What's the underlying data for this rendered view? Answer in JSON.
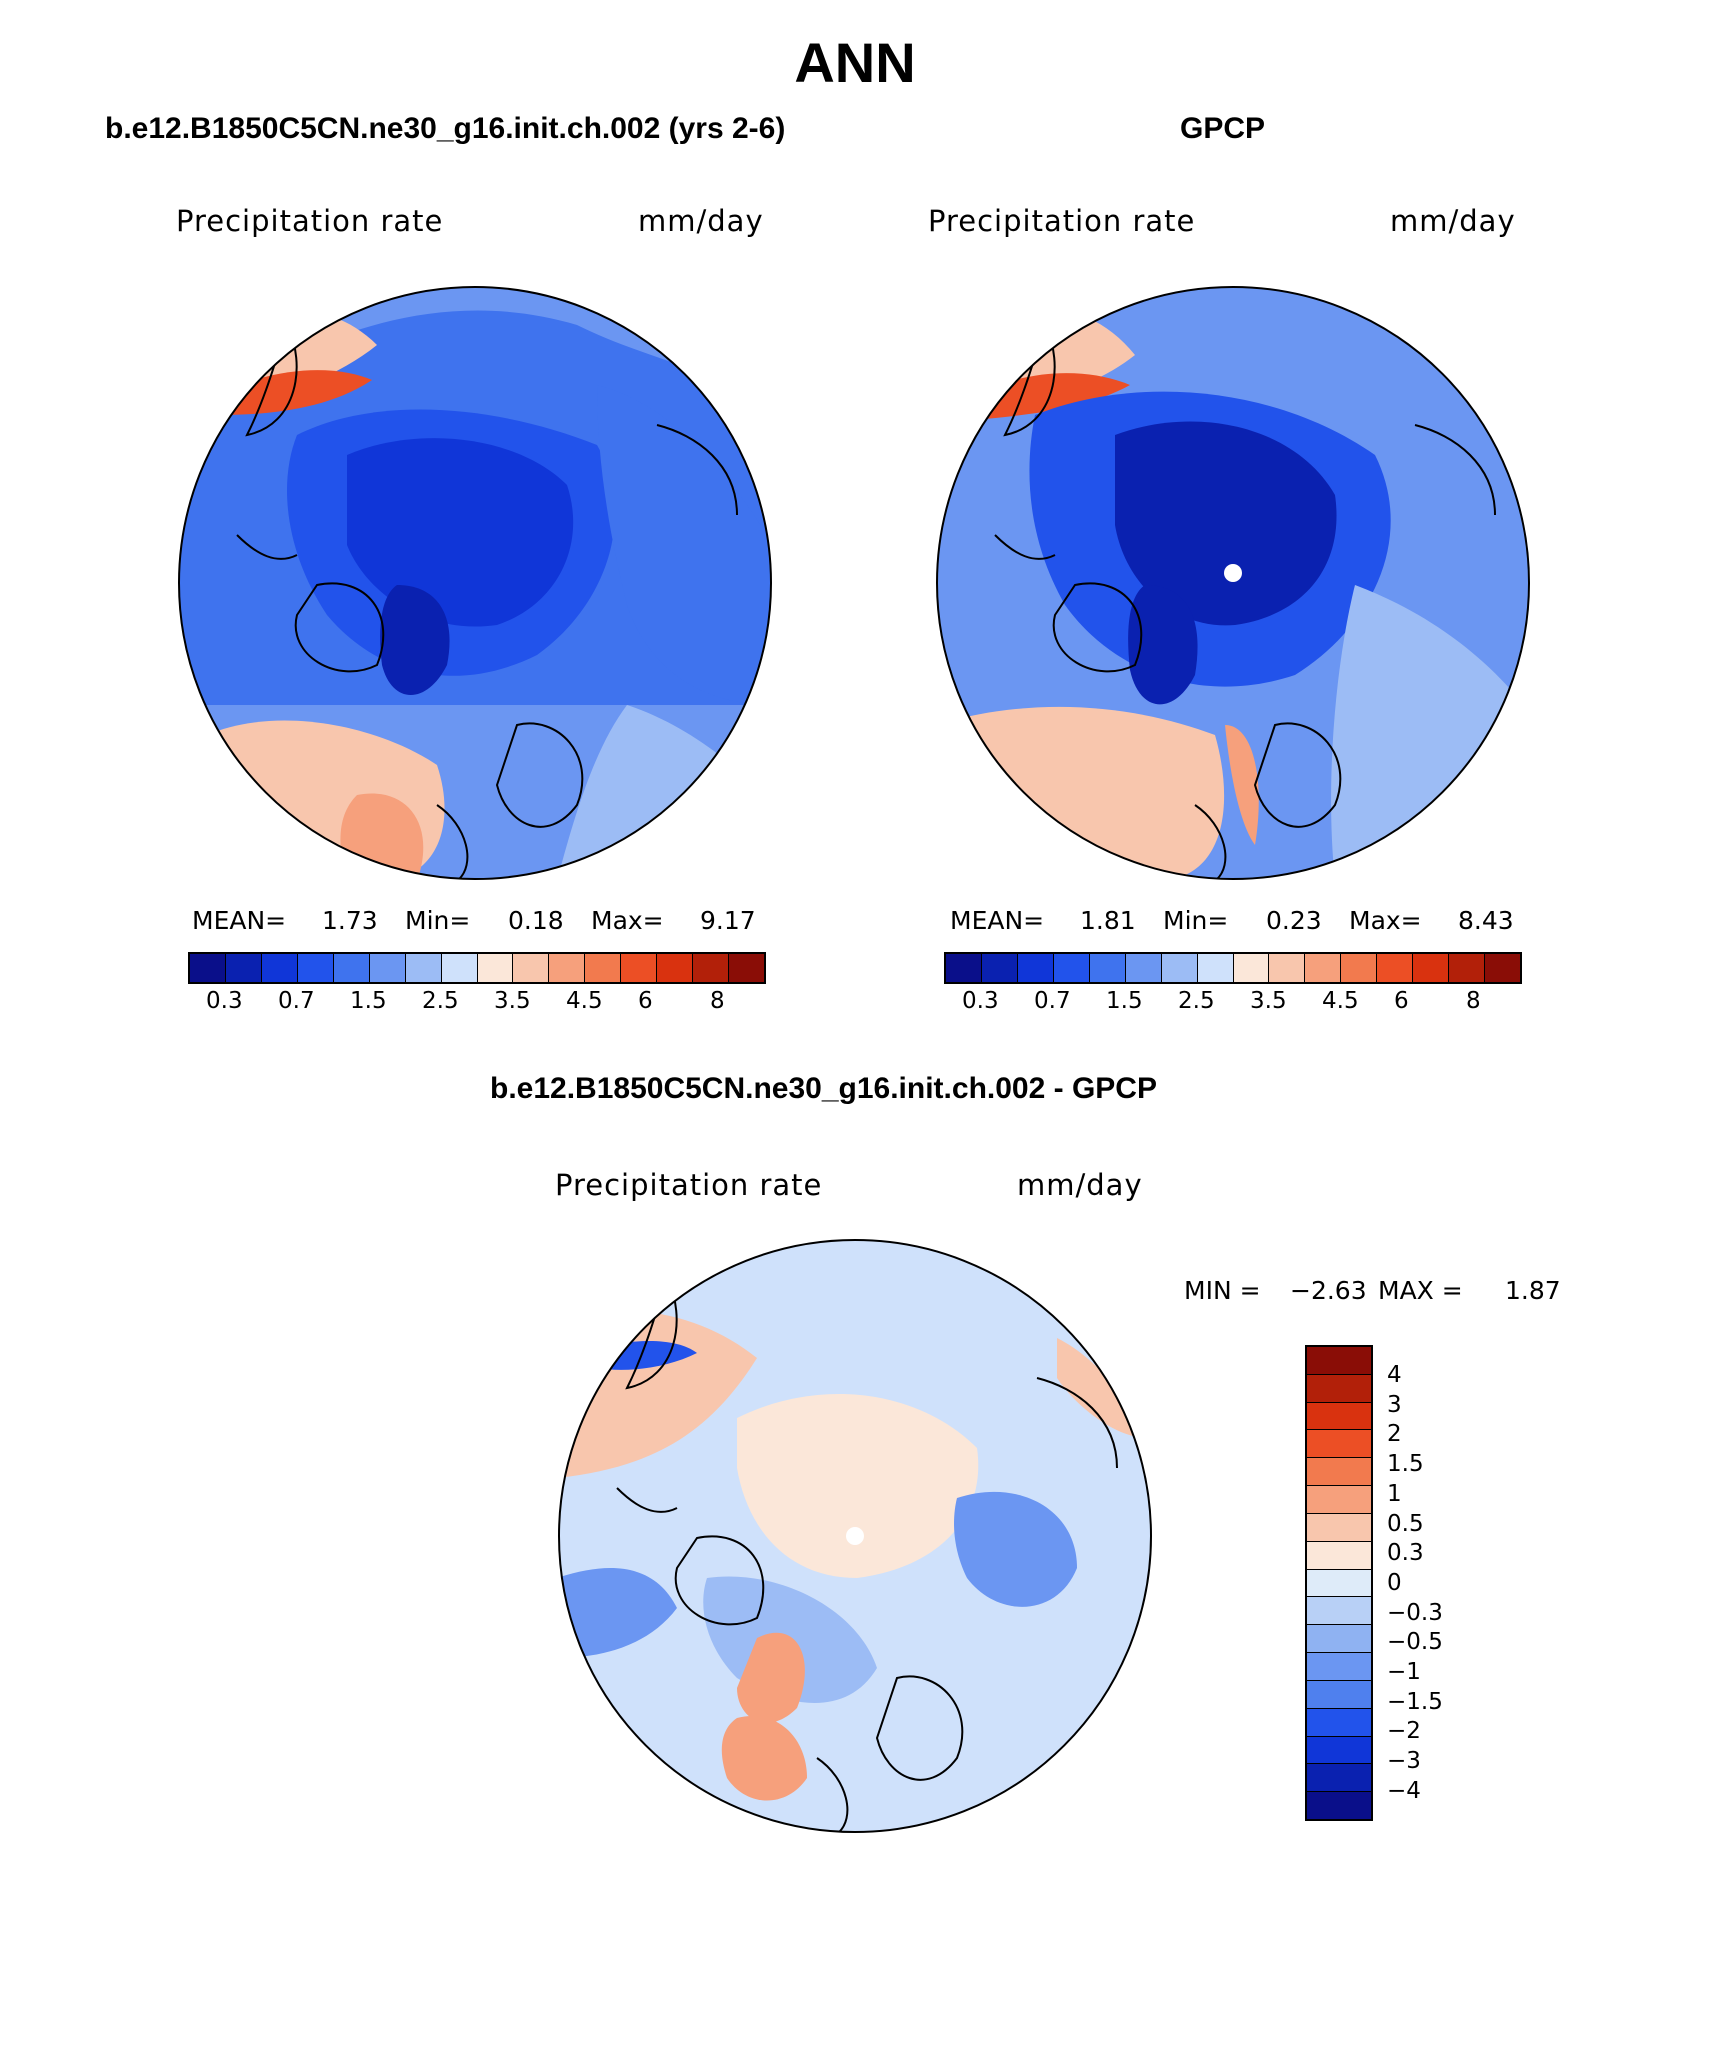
{
  "title": "ANN",
  "panels": {
    "model": {
      "case_title": "b.e12.B1850C5CN.ne30_g16.init.ch.002 (yrs 2-6)",
      "variable": "Precipitation rate",
      "units": "mm/day",
      "mean_label": "MEAN=",
      "mean": "1.73",
      "min_label": "Min=",
      "min": "0.18",
      "max_label": "Max=",
      "max": "9.17"
    },
    "obs": {
      "case_title": "GPCP",
      "variable": "Precipitation rate",
      "units": "mm/day",
      "mean_label": "MEAN=",
      "mean": "1.81",
      "min_label": "Min=",
      "min": "0.23",
      "max_label": "Max=",
      "max": "8.43"
    },
    "diff": {
      "case_title": "b.e12.B1850C5CN.ne30_g16.init.ch.002 - GPCP",
      "variable": "Precipitation rate",
      "units": "mm/day",
      "min_label": "MIN =",
      "min": "−2.63",
      "max_label": "MAX =",
      "max": "1.87"
    }
  },
  "colorbar_abs": {
    "tick_labels": [
      "0.3",
      "0.7",
      "1.5",
      "2.5",
      "3.5",
      "4.5",
      "6",
      "8"
    ],
    "colors": [
      "#0a0f8a",
      "#0a21b0",
      "#1036d8",
      "#2253eb",
      "#3f73ee",
      "#6b96f2",
      "#9cbcf5",
      "#cfe1fb",
      "#fbe7d9",
      "#f8c6ad",
      "#f6a07c",
      "#f27a4e",
      "#ec4f25",
      "#d9320f",
      "#b22009",
      "#8a0d06"
    ]
  },
  "colorbar_diff": {
    "tick_labels": [
      "4",
      "3",
      "2",
      "1.5",
      "1",
      "0.5",
      "0.3",
      "0",
      "−0.3",
      "−0.5",
      "−1",
      "−1.5",
      "−2",
      "−3",
      "−4"
    ],
    "colors": [
      "#8a0d06",
      "#b22009",
      "#d9320f",
      "#ec4f25",
      "#f27a4e",
      "#f6a07c",
      "#f8c6ad",
      "#fbe7d9",
      "#deebf9",
      "#b8d0f6",
      "#8fb2f2",
      "#6b96f2",
      "#4f80ee",
      "#2253eb",
      "#1036d8",
      "#0a21b0",
      "#0a0f8a"
    ]
  },
  "map_colors": {
    "dark1": "#0a21b0",
    "dark2": "#1036d8",
    "mid1": "#2253eb",
    "mid2": "#3f73ee",
    "light1": "#6b96f2",
    "light2": "#9cbcf5",
    "pale": "#cfe1fb",
    "warm1": "#fbe7d9",
    "warm2": "#f8c6ad",
    "warm3": "#f6a07c",
    "warm4": "#ec4f25",
    "warm5": "#b22009"
  }
}
